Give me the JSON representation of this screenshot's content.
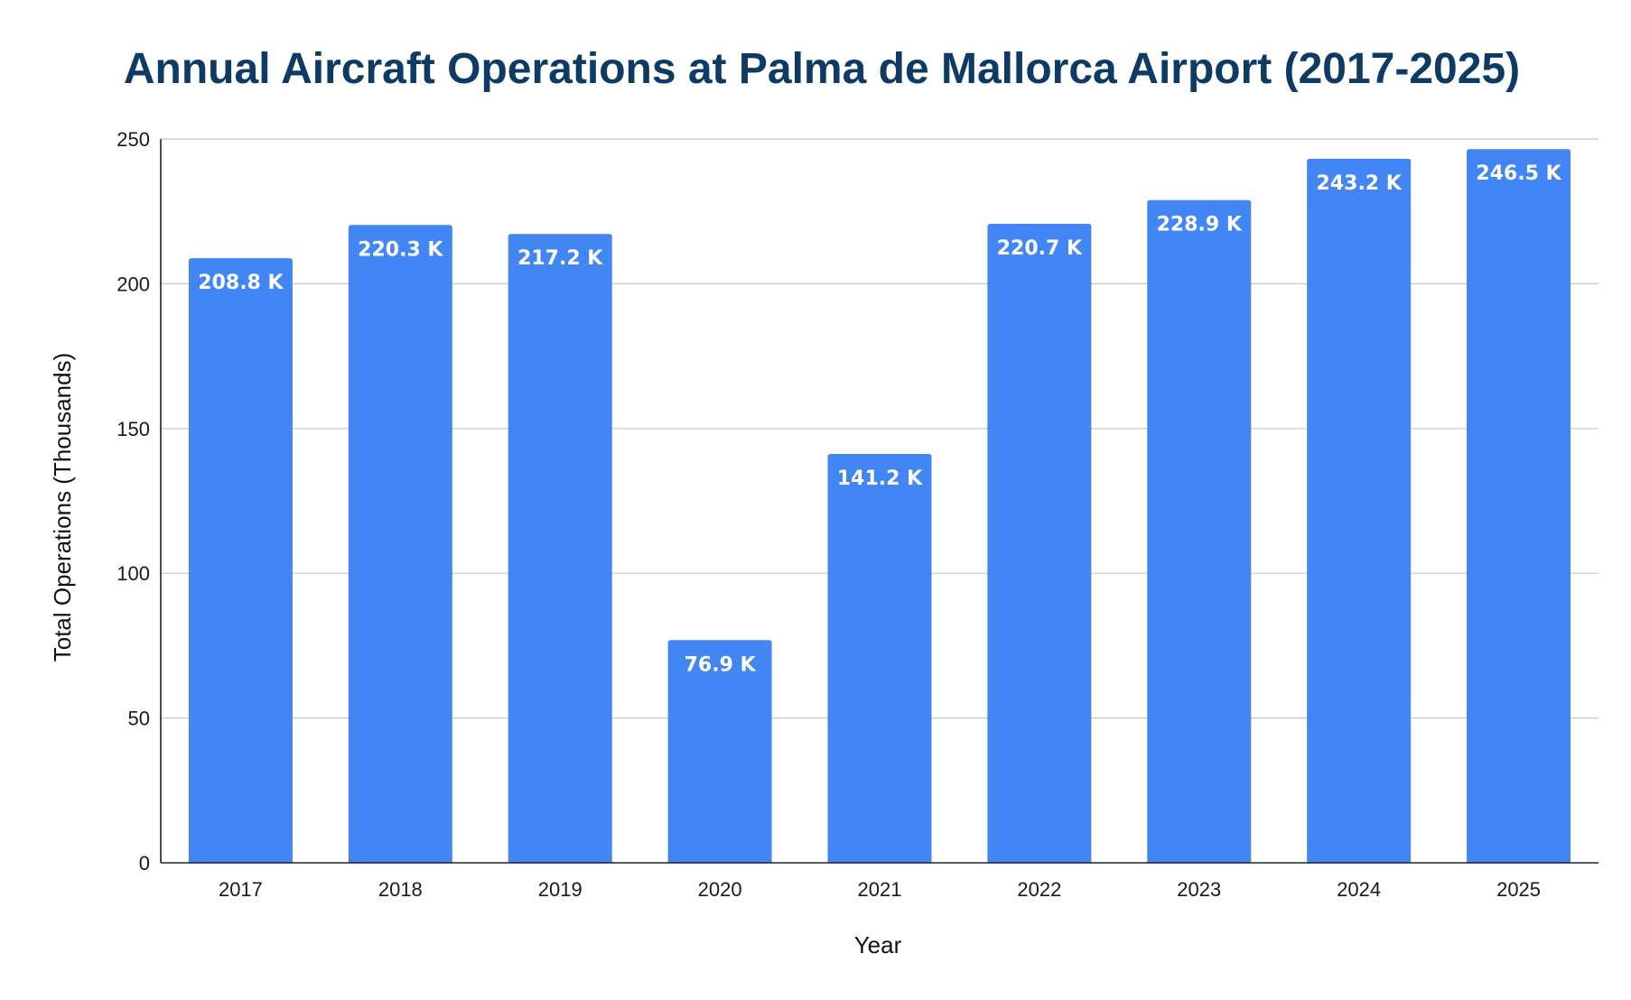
{
  "chart_data": {
    "type": "bar",
    "title": "Annual Aircraft Operations at Palma de Mallorca Airport (2017-2025)",
    "xlabel": "Year",
    "ylabel": "Total Operations (Thousands)",
    "categories": [
      "2017",
      "2018",
      "2019",
      "2020",
      "2021",
      "2022",
      "2023",
      "2024",
      "2025"
    ],
    "values": [
      208.8,
      220.3,
      217.2,
      76.9,
      141.2,
      220.7,
      228.9,
      243.2,
      246.5
    ],
    "data_labels": [
      "208.8 K",
      "220.3 K",
      "217.2 K",
      "76.9 K",
      "141.2 K",
      "220.7 K",
      "228.9 K",
      "243.2 K",
      "246.5 K"
    ],
    "ylim": [
      0,
      250
    ],
    "yticks": [
      "0",
      "50",
      "100",
      "150",
      "200",
      "250"
    ],
    "grid": true,
    "legend": "none",
    "bar_color": "#4285f4",
    "title_color": "#0d3b66"
  }
}
